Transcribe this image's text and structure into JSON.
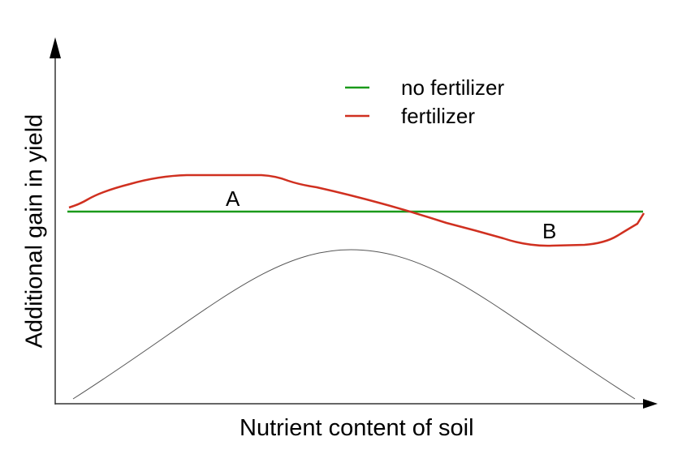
{
  "diagram": {
    "y_axis_label": "Additional gain in yield",
    "x_axis_label": "Nutrient content of soil",
    "legend": [
      {
        "label": "no fertilizer",
        "color": "#1a9a1a"
      },
      {
        "label": "fertilizer",
        "color": "#d03020"
      }
    ],
    "annotations": {
      "a": "A",
      "b": "B"
    },
    "background_curve_color": "#555555",
    "axis_color": "#000000"
  }
}
